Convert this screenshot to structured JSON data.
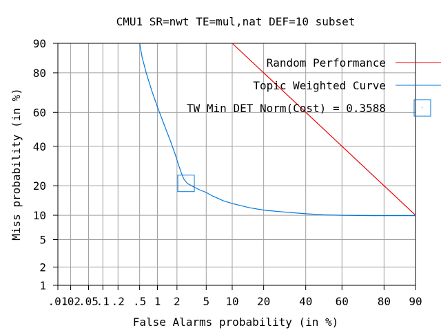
{
  "chart_data": {
    "type": "line",
    "title": "CMU1 SR=nwt TE=mul,nat DEF=10 subset",
    "xlabel": "False Alarms probability (in %)",
    "ylabel": "Miss probability (in %)",
    "scale": "normal-deviate (DET)",
    "xlim": [
      0.01,
      90
    ],
    "ylim": [
      1,
      90
    ],
    "grid": true,
    "legend_placement": "top-right",
    "x_ticks": [
      {
        "value": 0.01,
        "label": ".01"
      },
      {
        "value": 0.02,
        "label": ".02"
      },
      {
        "value": 0.05,
        "label": ".05"
      },
      {
        "value": 0.1,
        "label": ".1"
      },
      {
        "value": 0.2,
        "label": ".2"
      },
      {
        "value": 0.5,
        "label": ".5"
      },
      {
        "value": 1,
        "label": "1"
      },
      {
        "value": 2,
        "label": "2"
      },
      {
        "value": 5,
        "label": "5"
      },
      {
        "value": 10,
        "label": "10"
      },
      {
        "value": 20,
        "label": "20"
      },
      {
        "value": 40,
        "label": "40"
      },
      {
        "value": 60,
        "label": "60"
      },
      {
        "value": 80,
        "label": "80"
      },
      {
        "value": 90,
        "label": "90"
      }
    ],
    "y_ticks": [
      {
        "value": 1,
        "label": "1"
      },
      {
        "value": 2,
        "label": "2"
      },
      {
        "value": 5,
        "label": "5"
      },
      {
        "value": 10,
        "label": "10"
      },
      {
        "value": 20,
        "label": "20"
      },
      {
        "value": 40,
        "label": "40"
      },
      {
        "value": 60,
        "label": "60"
      },
      {
        "value": 80,
        "label": "80"
      },
      {
        "value": 90,
        "label": "90"
      }
    ],
    "series": [
      {
        "name": "Random Performance",
        "color": "#ee0000",
        "points": [
          [
            10,
            90
          ],
          [
            90,
            10
          ]
        ]
      },
      {
        "name": "Topic Weighted Curve",
        "color": "#0077dd",
        "points": [
          [
            0.5,
            90
          ],
          [
            0.55,
            86
          ],
          [
            0.65,
            80
          ],
          [
            0.8,
            72
          ],
          [
            1.0,
            63
          ],
          [
            1.3,
            52
          ],
          [
            1.6,
            43
          ],
          [
            1.9,
            35
          ],
          [
            2.1,
            30
          ],
          [
            2.3,
            26
          ],
          [
            2.5,
            23
          ],
          [
            2.8,
            21
          ],
          [
            3.2,
            20
          ],
          [
            4,
            18.5
          ],
          [
            5,
            17.3
          ],
          [
            6,
            16
          ],
          [
            8,
            14.3
          ],
          [
            10,
            13.4
          ],
          [
            15,
            12.1
          ],
          [
            20,
            11.4
          ],
          [
            30,
            10.8
          ],
          [
            40,
            10.4
          ],
          [
            50,
            10.1
          ],
          [
            60,
            10.0
          ],
          [
            75,
            9.9
          ],
          [
            90,
            9.9
          ]
        ]
      }
    ],
    "annotations": [
      {
        "name": "TW Min DET Norm(Cost) = 0.3588",
        "color": "#0077dd",
        "marker": "square",
        "points": [
          [
            2.7,
            21
          ]
        ]
      }
    ]
  }
}
